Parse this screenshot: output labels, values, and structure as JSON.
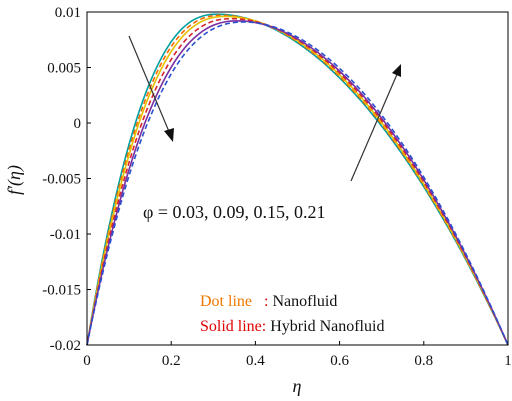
{
  "chart_data": {
    "type": "line",
    "xlabel": "η",
    "ylabel": "f′(η)",
    "xlim": [
      0,
      1
    ],
    "ylim": [
      -0.02,
      0.01
    ],
    "x_ticks": [
      "0",
      "0.2",
      "0.4",
      "0.6",
      "0.8",
      "1"
    ],
    "y_ticks": [
      "0.01",
      "0.005",
      "0",
      "-0.005",
      "-0.01",
      "-0.015",
      "-0.02"
    ],
    "annotation": "φ = 0.03, 0.09, 0.15, 0.21",
    "legend": {
      "dot_label": "Dot line",
      "dot_sep": "   : ",
      "dot_desc": "Nanofluid",
      "solid_label": "Solid line",
      "solid_sep": ": ",
      "solid_desc": "Hybrid Nanofluid"
    },
    "series": [
      {
        "color": "#00a0a0",
        "style": "solid",
        "peak_x": 0.31,
        "peak_y": 0.0098
      },
      {
        "color": "#f26a00",
        "style": "dashed",
        "peak_x": 0.32,
        "peak_y": 0.0097
      },
      {
        "color": "#e8c000",
        "style": "solid",
        "peak_x": 0.33,
        "peak_y": 0.0096
      },
      {
        "color": "#d9232e",
        "style": "dashed",
        "peak_x": 0.345,
        "peak_y": 0.0094
      },
      {
        "color": "#7a2fa0",
        "style": "solid",
        "peak_x": 0.36,
        "peak_y": 0.0092
      },
      {
        "color": "#2a4fd0",
        "style": "dashed",
        "peak_x": 0.375,
        "peak_y": 0.0091
      }
    ],
    "colors": {
      "dot_label": "#f07800",
      "solid_label": "#e00000",
      "axis": "#000000"
    },
    "grid": false
  }
}
